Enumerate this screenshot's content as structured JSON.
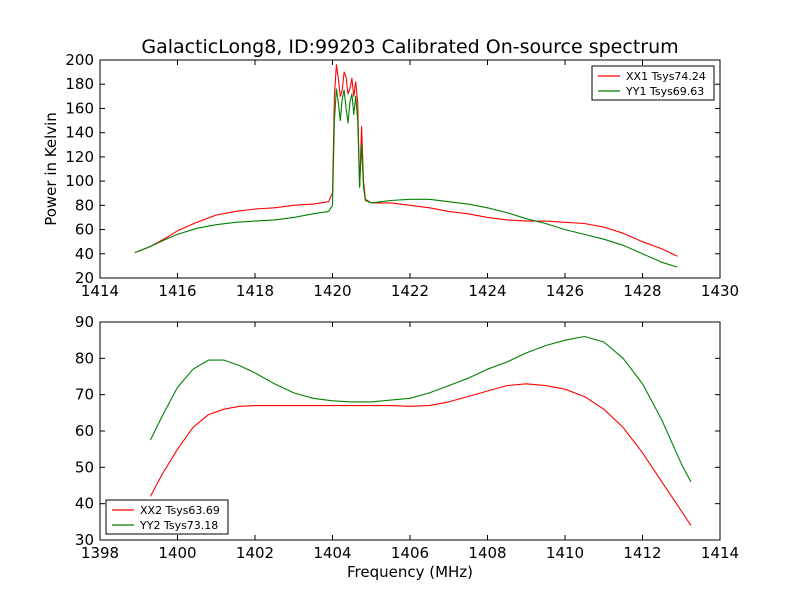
{
  "chart_data": {
    "title": "GalacticLong8, ID:99203 Calibrated On-source spectrum",
    "xlabel": "Frequency (MHz)",
    "ylabel": "Power in Kelvin",
    "panels": [
      {
        "type": "line",
        "xlim": [
          1414,
          1430
        ],
        "ylim": [
          20,
          200
        ],
        "xticks": [
          1414,
          1416,
          1418,
          1420,
          1422,
          1424,
          1426,
          1428,
          1430
        ],
        "yticks": [
          20,
          40,
          60,
          80,
          100,
          120,
          140,
          160,
          180,
          200
        ],
        "grid": false,
        "legend_position": "top-right",
        "series": [
          {
            "name": "XX1 Tsys74.24",
            "color": "#ff0000",
            "points": [
              [
                1414.9,
                41
              ],
              [
                1415.3,
                46
              ],
              [
                1415.7,
                53
              ],
              [
                1416.0,
                59
              ],
              [
                1416.5,
                66
              ],
              [
                1417.0,
                72
              ],
              [
                1417.5,
                75
              ],
              [
                1418.0,
                77
              ],
              [
                1418.5,
                78
              ],
              [
                1419.0,
                80
              ],
              [
                1419.5,
                81
              ],
              [
                1419.9,
                83
              ],
              [
                1420.0,
                90
              ],
              [
                1420.05,
                170
              ],
              [
                1420.1,
                196
              ],
              [
                1420.15,
                185
              ],
              [
                1420.2,
                170
              ],
              [
                1420.25,
                175
              ],
              [
                1420.3,
                190
              ],
              [
                1420.35,
                186
              ],
              [
                1420.4,
                172
              ],
              [
                1420.45,
                176
              ],
              [
                1420.5,
                185
              ],
              [
                1420.55,
                170
              ],
              [
                1420.6,
                182
              ],
              [
                1420.65,
                165
              ],
              [
                1420.7,
                95
              ],
              [
                1420.75,
                145
              ],
              [
                1420.8,
                100
              ],
              [
                1420.85,
                85
              ],
              [
                1421.0,
                82
              ],
              [
                1421.5,
                82
              ],
              [
                1422.0,
                80
              ],
              [
                1422.5,
                78
              ],
              [
                1423.0,
                75
              ],
              [
                1423.5,
                73
              ],
              [
                1424.0,
                70
              ],
              [
                1424.5,
                68
              ],
              [
                1425.0,
                67
              ],
              [
                1425.5,
                67
              ],
              [
                1426.0,
                66
              ],
              [
                1426.5,
                65
              ],
              [
                1427.0,
                62
              ],
              [
                1427.5,
                57
              ],
              [
                1428.0,
                50
              ],
              [
                1428.5,
                44
              ],
              [
                1428.9,
                38
              ]
            ]
          },
          {
            "name": "YY1 Tsys69.63",
            "color": "#008000",
            "points": [
              [
                1414.9,
                41
              ],
              [
                1415.3,
                46
              ],
              [
                1415.7,
                52
              ],
              [
                1416.0,
                56
              ],
              [
                1416.5,
                61
              ],
              [
                1417.0,
                64
              ],
              [
                1417.5,
                66
              ],
              [
                1418.0,
                67
              ],
              [
                1418.5,
                68
              ],
              [
                1419.0,
                70
              ],
              [
                1419.5,
                73
              ],
              [
                1419.9,
                75
              ],
              [
                1420.0,
                80
              ],
              [
                1420.05,
                150
              ],
              [
                1420.1,
                176
              ],
              [
                1420.15,
                165
              ],
              [
                1420.2,
                150
              ],
              [
                1420.25,
                168
              ],
              [
                1420.3,
                175
              ],
              [
                1420.35,
                160
              ],
              [
                1420.4,
                148
              ],
              [
                1420.45,
                165
              ],
              [
                1420.5,
                172
              ],
              [
                1420.55,
                155
              ],
              [
                1420.6,
                170
              ],
              [
                1420.65,
                150
              ],
              [
                1420.7,
                95
              ],
              [
                1420.75,
                130
              ],
              [
                1420.8,
                95
              ],
              [
                1420.85,
                84
              ],
              [
                1421.0,
                82
              ],
              [
                1421.5,
                84
              ],
              [
                1422.0,
                85
              ],
              [
                1422.5,
                85
              ],
              [
                1423.0,
                83
              ],
              [
                1423.5,
                81
              ],
              [
                1424.0,
                78
              ],
              [
                1424.5,
                74
              ],
              [
                1425.0,
                69
              ],
              [
                1425.5,
                65
              ],
              [
                1426.0,
                60
              ],
              [
                1426.5,
                56
              ],
              [
                1427.0,
                52
              ],
              [
                1427.5,
                47
              ],
              [
                1428.0,
                40
              ],
              [
                1428.5,
                33
              ],
              [
                1428.9,
                29
              ]
            ]
          }
        ]
      },
      {
        "type": "line",
        "xlim": [
          1398,
          1414
        ],
        "ylim": [
          30,
          90
        ],
        "xticks": [
          1398,
          1400,
          1402,
          1404,
          1406,
          1408,
          1410,
          1412,
          1414
        ],
        "yticks": [
          30,
          40,
          50,
          60,
          70,
          80,
          90
        ],
        "grid": false,
        "legend_position": "bottom-left",
        "series": [
          {
            "name": "XX2 Tsys63.69",
            "color": "#ff0000",
            "points": [
              [
                1399.3,
                42
              ],
              [
                1399.6,
                48
              ],
              [
                1400.0,
                55
              ],
              [
                1400.4,
                61
              ],
              [
                1400.8,
                64.5
              ],
              [
                1401.2,
                66
              ],
              [
                1401.6,
                66.8
              ],
              [
                1402.0,
                67
              ],
              [
                1402.5,
                67
              ],
              [
                1403.0,
                67
              ],
              [
                1403.5,
                67
              ],
              [
                1404.0,
                67
              ],
              [
                1404.5,
                67
              ],
              [
                1405.0,
                67
              ],
              [
                1405.5,
                67
              ],
              [
                1406.0,
                66.8
              ],
              [
                1406.5,
                67
              ],
              [
                1407.0,
                68
              ],
              [
                1407.5,
                69.5
              ],
              [
                1408.0,
                71
              ],
              [
                1408.5,
                72.5
              ],
              [
                1409.0,
                73
              ],
              [
                1409.5,
                72.5
              ],
              [
                1410.0,
                71.5
              ],
              [
                1410.5,
                69.5
              ],
              [
                1411.0,
                66
              ],
              [
                1411.5,
                61
              ],
              [
                1412.0,
                54
              ],
              [
                1412.5,
                46
              ],
              [
                1413.0,
                38
              ],
              [
                1413.25,
                34
              ]
            ]
          },
          {
            "name": "YY2 Tsys73.18",
            "color": "#008000",
            "points": [
              [
                1399.3,
                57.5
              ],
              [
                1399.6,
                64
              ],
              [
                1400.0,
                72
              ],
              [
                1400.4,
                77
              ],
              [
                1400.8,
                79.5
              ],
              [
                1401.2,
                79.5
              ],
              [
                1401.6,
                78
              ],
              [
                1402.0,
                76
              ],
              [
                1402.5,
                73
              ],
              [
                1403.0,
                70.5
              ],
              [
                1403.5,
                69
              ],
              [
                1404.0,
                68.3
              ],
              [
                1404.5,
                68
              ],
              [
                1405.0,
                68
              ],
              [
                1405.5,
                68.5
              ],
              [
                1406.0,
                69
              ],
              [
                1406.5,
                70.5
              ],
              [
                1407.0,
                72.5
              ],
              [
                1407.5,
                74.5
              ],
              [
                1408.0,
                77
              ],
              [
                1408.5,
                79
              ],
              [
                1409.0,
                81.5
              ],
              [
                1409.5,
                83.5
              ],
              [
                1410.0,
                85
              ],
              [
                1410.5,
                86
              ],
              [
                1411.0,
                84.5
              ],
              [
                1411.5,
                80
              ],
              [
                1412.0,
                73
              ],
              [
                1412.5,
                63
              ],
              [
                1413.0,
                51
              ],
              [
                1413.25,
                46
              ]
            ]
          }
        ]
      }
    ]
  }
}
